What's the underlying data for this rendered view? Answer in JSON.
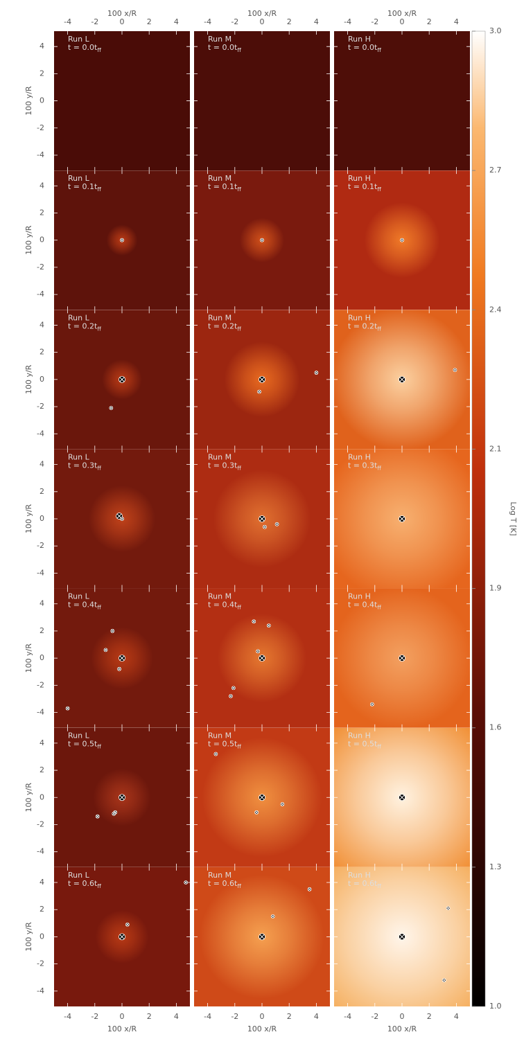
{
  "figure": {
    "x_label": "100 x/R",
    "y_label": "100 y/R",
    "colorbar_label": "Log T [K]",
    "xlim": [
      -5,
      5
    ],
    "ylim": [
      -5,
      5
    ],
    "xticks": [
      -4,
      -2,
      0,
      2,
      4
    ],
    "yticks": [
      -4,
      -2,
      0,
      2,
      4
    ],
    "colorbar_lim": [
      1.0,
      3.0
    ],
    "colorbar_ticks": [
      {
        "value": 1.0,
        "label": "1.0"
      },
      {
        "value": 1.2857,
        "label": "1.3"
      },
      {
        "value": 1.5714,
        "label": "1.6"
      },
      {
        "value": 1.8571,
        "label": "1.9"
      },
      {
        "value": 2.1429,
        "label": "2.1"
      },
      {
        "value": 2.4286,
        "label": "2.4"
      },
      {
        "value": 2.7143,
        "label": "2.7"
      },
      {
        "value": 3.0,
        "label": "3.0"
      }
    ]
  },
  "panels": [
    [
      {
        "run": "Run L",
        "time": "t = 0.0t",
        "sub": "ff",
        "sinks": {
          "x": [],
          "y": []
        }
      },
      {
        "run": "Run M",
        "time": "t = 0.0t",
        "sub": "ff",
        "sinks": {
          "x": [],
          "y": []
        }
      },
      {
        "run": "Run H",
        "time": "t = 0.0t",
        "sub": "ff",
        "sinks": {
          "x": [],
          "y": []
        }
      }
    ],
    [
      {
        "run": "Run L",
        "time": "t = 0.1t",
        "sub": "ff",
        "sinks": {
          "x": [
            0
          ],
          "y": [
            0
          ]
        }
      },
      {
        "run": "Run M",
        "time": "t = 0.1t",
        "sub": "ff",
        "sinks": {
          "x": [
            0
          ],
          "y": [
            0
          ]
        }
      },
      {
        "run": "Run H",
        "time": "t = 0.1t",
        "sub": "ff",
        "sinks": {
          "x": [
            0
          ],
          "y": [
            0
          ]
        }
      }
    ],
    [
      {
        "run": "Run L",
        "time": "t = 0.2t",
        "sub": "ff",
        "sinks": {
          "x": [
            0,
            -0.8
          ],
          "y": [
            0,
            -2.1
          ]
        }
      },
      {
        "run": "Run M",
        "time": "t = 0.2t",
        "sub": "ff",
        "sinks": {
          "x": [
            0,
            -0.2,
            4
          ],
          "y": [
            0,
            -0.9,
            0.5
          ]
        }
      },
      {
        "run": "Run H",
        "time": "t = 0.2t",
        "sub": "ff",
        "sinks": {
          "x": [
            0,
            3.9
          ],
          "y": [
            0,
            0.7
          ]
        }
      }
    ],
    [
      {
        "run": "Run L",
        "time": "t = 0.3t",
        "sub": "ff",
        "sinks": {
          "x": [
            -0.2,
            0
          ],
          "y": [
            0.2,
            0
          ]
        }
      },
      {
        "run": "Run M",
        "time": "t = 0.3t",
        "sub": "ff",
        "sinks": {
          "x": [
            0,
            0.2,
            1.1
          ],
          "y": [
            0,
            -0.6,
            -0.4
          ]
        }
      },
      {
        "run": "Run H",
        "time": "t = 0.3t",
        "sub": "ff",
        "sinks": {
          "x": [
            0
          ],
          "y": [
            0
          ]
        }
      }
    ],
    [
      {
        "run": "Run L",
        "time": "t = 0.4t",
        "sub": "ff",
        "sinks": {
          "x": [
            0,
            -0.2,
            -1.2,
            -0.7,
            -4
          ],
          "y": [
            0,
            -0.8,
            0.6,
            2,
            -3.7
          ]
        }
      },
      {
        "run": "Run M",
        "time": "t = 0.4t",
        "sub": "ff",
        "sinks": {
          "x": [
            0,
            -0.3,
            -0.6,
            0.5,
            -2.1,
            -2.3
          ],
          "y": [
            0,
            0.5,
            2.7,
            2.4,
            -2.2,
            -2.8
          ]
        }
      },
      {
        "run": "Run H",
        "time": "t = 0.4t",
        "sub": "ff",
        "sinks": {
          "x": [
            0,
            -2.2
          ],
          "y": [
            0,
            -3.4
          ]
        }
      }
    ],
    [
      {
        "run": "Run L",
        "time": "t = 0.5t",
        "sub": "ff",
        "sinks": {
          "x": [
            0,
            -0.5,
            -0.6,
            -1.8
          ],
          "y": [
            0,
            -1.1,
            -1.2,
            -1.4
          ]
        }
      },
      {
        "run": "Run M",
        "time": "t = 0.5t",
        "sub": "ff",
        "sinks": {
          "x": [
            0,
            -0.4,
            1.5,
            -3.4
          ],
          "y": [
            0,
            -1.1,
            -0.5,
            3.2
          ]
        }
      },
      {
        "run": "Run H",
        "time": "t = 0.5t",
        "sub": "ff",
        "sinks": {
          "x": [
            0
          ],
          "y": [
            0
          ]
        }
      }
    ],
    [
      {
        "run": "Run L",
        "time": "t = 0.6t",
        "sub": "ff",
        "sinks": {
          "x": [
            0,
            0.4,
            4.7
          ],
          "y": [
            0,
            0.9,
            4
          ]
        }
      },
      {
        "run": "Run M",
        "time": "t = 0.6t",
        "sub": "ff",
        "sinks": {
          "x": [
            0,
            0.8,
            3.5
          ],
          "y": [
            0,
            1.5,
            3.5
          ]
        }
      },
      {
        "run": "Run H",
        "time": "t = 0.6t",
        "sub": "ff",
        "sinks": {
          "x": [
            0,
            3.4,
            3.1
          ],
          "y": [
            0,
            2.1,
            -3.2
          ]
        }
      }
    ]
  ]
}
